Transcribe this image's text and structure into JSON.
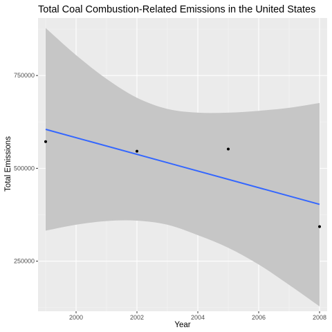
{
  "chart_data": {
    "type": "scatter",
    "title": "Total Coal Combustion-Related Emissions in the United States",
    "xlabel": "Year",
    "ylabel": "Total Emissions",
    "xlim": [
      1998.75,
      2008.25
    ],
    "ylim": [
      115000,
      905000
    ],
    "x_ticks": [
      2000,
      2002,
      2004,
      2006,
      2008
    ],
    "x_tick_labels": [
      "2000",
      "2002",
      "2004",
      "2006",
      "2008"
    ],
    "y_ticks": [
      250000,
      500000,
      750000
    ],
    "y_tick_labels": [
      "250000",
      "500000",
      "750000"
    ],
    "grid": true,
    "points": [
      {
        "x": 1999,
        "y": 572000
      },
      {
        "x": 2002,
        "y": 546000
      },
      {
        "x": 2005,
        "y": 552000
      },
      {
        "x": 2008,
        "y": 343000
      }
    ],
    "trend": {
      "method": "linear",
      "start": {
        "x": 1999,
        "y": 605000
      },
      "end": {
        "x": 2008,
        "y": 403000
      }
    },
    "confidence_band": [
      {
        "x": 1999,
        "lower": 332000,
        "upper": 878000
      },
      {
        "x": 2000,
        "lower": 348000,
        "upper": 805000
      },
      {
        "x": 2001,
        "lower": 358000,
        "upper": 741000
      },
      {
        "x": 2002,
        "lower": 359000,
        "upper": 690000
      },
      {
        "x": 2003,
        "lower": 348000,
        "upper": 660000
      },
      {
        "x": 2004,
        "lower": 320000,
        "upper": 650000
      },
      {
        "x": 2005,
        "lower": 286000,
        "upper": 650000
      },
      {
        "x": 2006,
        "lower": 241000,
        "upper": 655000
      },
      {
        "x": 2007,
        "lower": 186000,
        "upper": 663000
      },
      {
        "x": 2008,
        "lower": 128000,
        "upper": 676000
      }
    ],
    "colors": {
      "panel": "#ebebeb",
      "grid_major": "#ffffff",
      "grid_minor": "#f4f4f4",
      "band": "#c6c6c6",
      "line": "#3366ff",
      "point": "#000000"
    }
  }
}
